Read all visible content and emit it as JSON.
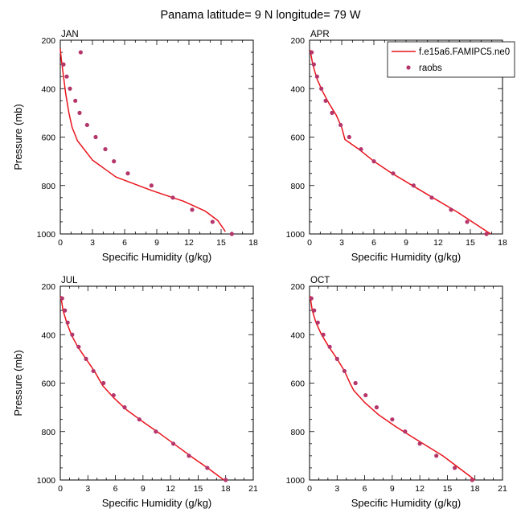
{
  "title": "Panama  latitude= 9 N longitude= 79 W",
  "colors": {
    "model": "#e8141c",
    "obs": "#b5366a",
    "axis": "#000000"
  },
  "legend": {
    "model_label": "f.e15a6.FAMIPC5.ne0",
    "obs_label": "raobs"
  },
  "chart_data": [
    {
      "type": "line",
      "panel": "JAN",
      "xlabel": "Specific Humidity (g/kg)",
      "ylabel": "Pressure (mb)",
      "xlim": [
        0,
        18
      ],
      "xticks": [
        0,
        3,
        6,
        9,
        12,
        15,
        18
      ],
      "ylim": [
        1000,
        200
      ],
      "yticks": [
        200,
        400,
        600,
        800,
        1000
      ],
      "y_reversed": true,
      "series": [
        {
          "name": "f.e15a6.FAMIPC5.ne0",
          "kind": "line",
          "x": [
            0.0,
            0.1,
            0.3,
            0.5,
            0.8,
            1.1,
            1.6,
            3.0,
            5.2,
            8.5,
            11.5,
            13.5,
            14.7,
            15.4
          ],
          "y": [
            235,
            280,
            350,
            420,
            500,
            560,
            615,
            695,
            765,
            820,
            865,
            905,
            945,
            990
          ]
        },
        {
          "name": "raobs",
          "kind": "scatter",
          "x": [
            1.9,
            0.3,
            0.6,
            0.9,
            1.4,
            1.8,
            2.5,
            3.3,
            4.2,
            5.0,
            6.3,
            8.5,
            10.5,
            12.3,
            14.2,
            16.0
          ],
          "y": [
            250,
            300,
            350,
            400,
            450,
            500,
            550,
            600,
            650,
            700,
            750,
            800,
            850,
            900,
            950,
            1000
          ]
        }
      ]
    },
    {
      "type": "line",
      "panel": "APR",
      "xlabel": "Specific Humidity (g/kg)",
      "ylabel": "",
      "xlim": [
        0,
        18
      ],
      "xticks": [
        0,
        3,
        6,
        9,
        12,
        15,
        18
      ],
      "ylim": [
        1000,
        200
      ],
      "yticks": [
        200,
        400,
        600,
        800,
        1000
      ],
      "y_reversed": true,
      "series": [
        {
          "name": "f.e15a6.FAMIPC5.ne0",
          "kind": "line",
          "x": [
            0.05,
            0.3,
            0.7,
            1.2,
            1.8,
            2.5,
            3.0,
            3.3,
            4.6,
            6.0,
            7.7,
            9.6,
            11.5,
            13.8,
            16.9
          ],
          "y": [
            240,
            300,
            360,
            410,
            460,
            510,
            560,
            610,
            650,
            700,
            750,
            800,
            850,
            910,
            1000
          ]
        },
        {
          "name": "raobs",
          "kind": "scatter",
          "x": [
            0.2,
            0.4,
            0.7,
            1.1,
            1.5,
            2.1,
            2.9,
            3.7,
            4.8,
            6.0,
            7.8,
            9.7,
            11.4,
            13.2,
            14.7,
            16.5
          ],
          "y": [
            250,
            300,
            350,
            400,
            450,
            500,
            550,
            600,
            650,
            700,
            750,
            800,
            850,
            900,
            950,
            1000
          ]
        }
      ]
    },
    {
      "type": "line",
      "panel": "JUL",
      "xlabel": "Specific Humidity (g/kg)",
      "ylabel": "Pressure (mb)",
      "xlim": [
        0,
        21
      ],
      "xticks": [
        0,
        3,
        6,
        9,
        12,
        15,
        18,
        21
      ],
      "ylim": [
        1000,
        200
      ],
      "yticks": [
        200,
        400,
        600,
        800,
        1000
      ],
      "y_reversed": true,
      "series": [
        {
          "name": "f.e15a6.FAMIPC5.ne0",
          "kind": "line",
          "x": [
            0.05,
            0.3,
            0.7,
            1.2,
            1.9,
            2.8,
            3.7,
            4.6,
            5.8,
            7.2,
            9.0,
            10.9,
            12.7,
            14.5,
            16.2,
            17.8
          ],
          "y": [
            240,
            300,
            350,
            400,
            450,
            500,
            550,
            610,
            660,
            710,
            760,
            810,
            860,
            910,
            955,
            1000
          ]
        },
        {
          "name": "raobs",
          "kind": "scatter",
          "x": [
            0.2,
            0.5,
            0.8,
            1.3,
            2.0,
            2.8,
            3.6,
            4.7,
            5.8,
            7.0,
            8.6,
            10.4,
            12.3,
            14.0,
            16.0,
            18.0
          ],
          "y": [
            250,
            300,
            350,
            400,
            450,
            500,
            550,
            600,
            650,
            700,
            750,
            800,
            850,
            900,
            950,
            1000
          ]
        }
      ]
    },
    {
      "type": "line",
      "panel": "OCT",
      "xlabel": "Specific Humidity (g/kg)",
      "ylabel": "",
      "xlim": [
        0,
        21
      ],
      "xticks": [
        0,
        3,
        6,
        9,
        12,
        15,
        18,
        21
      ],
      "ylim": [
        1000,
        200
      ],
      "yticks": [
        200,
        400,
        600,
        800,
        1000
      ],
      "y_reversed": true,
      "series": [
        {
          "name": "f.e15a6.FAMIPC5.ne0",
          "kind": "line",
          "x": [
            0.05,
            0.3,
            0.7,
            1.3,
            2.1,
            3.0,
            3.8,
            4.4,
            4.8,
            6.0,
            7.5,
            9.4,
            11.5,
            14.5,
            18.0
          ],
          "y": [
            240,
            300,
            350,
            400,
            450,
            500,
            550,
            600,
            630,
            680,
            730,
            780,
            830,
            900,
            1000
          ]
        },
        {
          "name": "raobs",
          "kind": "scatter",
          "x": [
            0.2,
            0.5,
            0.9,
            1.5,
            2.2,
            3.0,
            3.8,
            5.0,
            6.1,
            7.3,
            9.0,
            10.4,
            12.0,
            13.8,
            15.8,
            17.7
          ],
          "y": [
            250,
            300,
            350,
            400,
            450,
            500,
            550,
            600,
            650,
            700,
            750,
            800,
            850,
            900,
            950,
            1000
          ]
        }
      ]
    }
  ]
}
